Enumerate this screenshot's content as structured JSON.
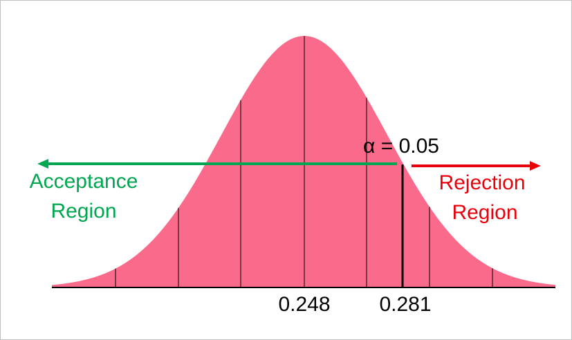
{
  "alpha_label": "α = 0.05",
  "acceptance_label": [
    "Acceptance",
    "Region"
  ],
  "rejection_label": [
    "Rejection",
    "Region"
  ],
  "axis_labels": [
    "0.248",
    "0.281"
  ]
}
